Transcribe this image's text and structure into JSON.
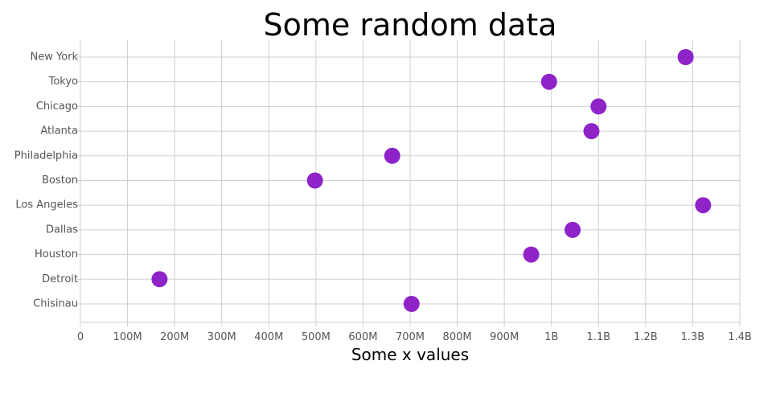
{
  "chart_data": {
    "type": "scatter",
    "title": "Some random data",
    "xlabel": "Some x values",
    "ylabel": "",
    "xlim": [
      0,
      1400000000
    ],
    "x_ticks": [
      0,
      100000000,
      200000000,
      300000000,
      400000000,
      500000000,
      600000000,
      700000000,
      800000000,
      900000000,
      1000000000,
      1100000000,
      1200000000,
      1300000000,
      1400000000
    ],
    "x_tick_labels": [
      "0",
      "100M",
      "200M",
      "300M",
      "400M",
      "500M",
      "600M",
      "700M",
      "800M",
      "900M",
      "1B",
      "1.1B",
      "1.2B",
      "1.3B",
      "1.4B"
    ],
    "categories": [
      "New York",
      "Tokyo",
      "Chicago",
      "Atlanta",
      "Philadelphia",
      "Boston",
      "Los Angeles",
      "Dallas",
      "Houston",
      "Detroit",
      "Chisinau"
    ],
    "series": [
      {
        "color": "#8e24c8",
        "points": [
          {
            "y": "New York",
            "x": 1285000000
          },
          {
            "y": "Tokyo",
            "x": 995000000
          },
          {
            "y": "Chicago",
            "x": 1100000000
          },
          {
            "y": "Atlanta",
            "x": 1085000000
          },
          {
            "y": "Philadelphia",
            "x": 662000000
          },
          {
            "y": "Boston",
            "x": 498000000
          },
          {
            "y": "Los Angeles",
            "x": 1322000000
          },
          {
            "y": "Dallas",
            "x": 1045000000
          },
          {
            "y": "Houston",
            "x": 957000000
          },
          {
            "y": "Detroit",
            "x": 168000000
          },
          {
            "y": "Chisinau",
            "x": 703000000
          }
        ]
      }
    ],
    "grid": true,
    "legend": "none"
  }
}
